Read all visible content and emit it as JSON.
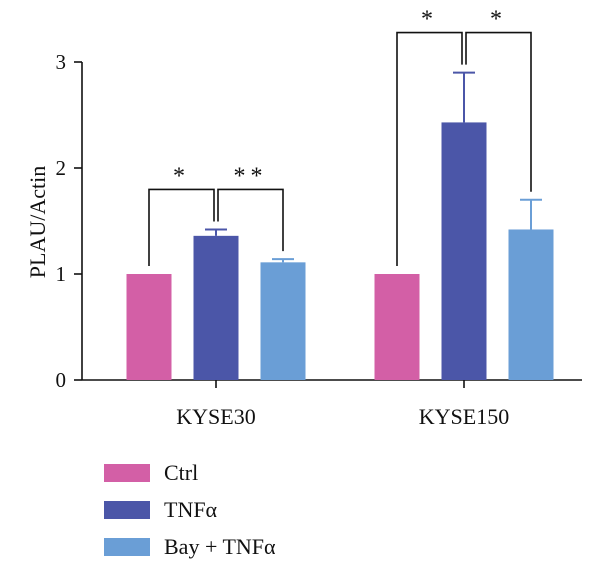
{
  "chart_data": {
    "type": "bar",
    "title": "",
    "xlabel": "",
    "ylabel": "PLAU/Actin",
    "ylim": [
      0,
      3
    ],
    "yticks": [
      0,
      1,
      2,
      3
    ],
    "grid": false,
    "legend_position": "bottom-left",
    "categories": [
      "KYSE30",
      "KYSE150"
    ],
    "series": [
      {
        "name": "Ctrl",
        "color": "#d35fa6",
        "values": [
          1.0,
          1.0
        ],
        "errors": [
          0,
          0
        ]
      },
      {
        "name": "TNFα",
        "color": "#4b56a8",
        "values": [
          1.36,
          2.43
        ],
        "errors": [
          0.06,
          0.47
        ]
      },
      {
        "name": "Bay + TNFα",
        "color": "#6a9ed6",
        "values": [
          1.11,
          1.42
        ],
        "errors": [
          0.03,
          0.28
        ]
      }
    ],
    "annotations": [
      {
        "group": "KYSE30",
        "from": "Ctrl",
        "to": "TNFα",
        "label": "*"
      },
      {
        "group": "KYSE30",
        "from": "TNFα",
        "to": "Bay + TNFα",
        "label": "**"
      },
      {
        "group": "KYSE150",
        "from": "Ctrl",
        "to": "TNFα",
        "label": "*"
      },
      {
        "group": "KYSE150",
        "from": "TNFα",
        "to": "Bay + TNFα",
        "label": "*"
      }
    ]
  }
}
